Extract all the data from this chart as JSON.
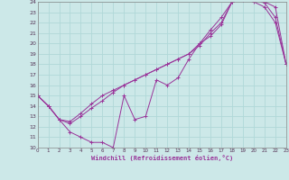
{
  "xlabel": "Windchill (Refroidissement éolien,°C)",
  "xlim": [
    0,
    23
  ],
  "ylim": [
    10,
    24
  ],
  "yticks": [
    10,
    11,
    12,
    13,
    14,
    15,
    16,
    17,
    18,
    19,
    20,
    21,
    22,
    23,
    24
  ],
  "xticks": [
    0,
    1,
    2,
    3,
    4,
    5,
    6,
    7,
    8,
    9,
    10,
    11,
    12,
    13,
    14,
    15,
    16,
    17,
    18,
    19,
    20,
    21,
    22,
    23
  ],
  "bg_color": "#cce8e8",
  "grid_color": "#b0d8d8",
  "line_color": "#993399",
  "line1_x": [
    0,
    1,
    2,
    3,
    4,
    5,
    6,
    7,
    8,
    9,
    10,
    11,
    12,
    13,
    14,
    15,
    16,
    17,
    18,
    19,
    20,
    21,
    22,
    23
  ],
  "line1_y": [
    15,
    14,
    12.7,
    11.5,
    11.0,
    10.5,
    10.5,
    10.0,
    15.0,
    12.7,
    13.0,
    16.5,
    16.0,
    16.7,
    18.5,
    20.0,
    20.7,
    21.8,
    24.0,
    24.2,
    24.0,
    23.5,
    22.0,
    18.0
  ],
  "line2_x": [
    0,
    1,
    2,
    3,
    4,
    5,
    6,
    7,
    8,
    9,
    10,
    11,
    12,
    13,
    14,
    15,
    16,
    17,
    18,
    19,
    20,
    21,
    22,
    23
  ],
  "line2_y": [
    15,
    14,
    12.7,
    12.3,
    13.0,
    13.8,
    14.5,
    15.3,
    16.0,
    16.5,
    17.0,
    17.5,
    18.0,
    18.5,
    19.0,
    19.8,
    21.0,
    22.0,
    24.0,
    24.3,
    24.2,
    23.9,
    22.5,
    18.0
  ],
  "line3_x": [
    0,
    1,
    2,
    3,
    4,
    5,
    6,
    7,
    8,
    9,
    10,
    11,
    12,
    13,
    14,
    15,
    16,
    17,
    18,
    19,
    20,
    21,
    22,
    23
  ],
  "line3_y": [
    15,
    14,
    12.7,
    12.5,
    13.3,
    14.2,
    15.0,
    15.5,
    16.0,
    16.5,
    17.0,
    17.5,
    18.0,
    18.5,
    19.0,
    20.0,
    21.3,
    22.5,
    24.0,
    24.3,
    24.2,
    24.0,
    23.5,
    18.0
  ]
}
